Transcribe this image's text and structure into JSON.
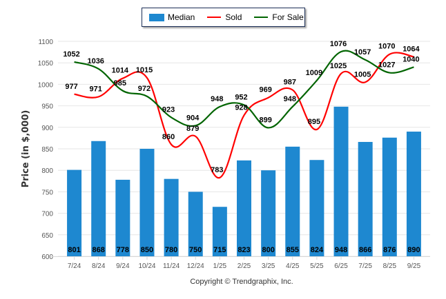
{
  "chart_data": {
    "type": "bar",
    "title": "",
    "xlabel": "",
    "ylabel": "Price (in $,000)",
    "ylim": [
      600,
      1100
    ],
    "yticks": [
      600,
      650,
      700,
      750,
      800,
      850,
      900,
      950,
      1000,
      1050,
      1100
    ],
    "grid": true,
    "legend_position": "top-center",
    "categories": [
      "7/24",
      "8/24",
      "9/24",
      "10/24",
      "11/24",
      "12/24",
      "1/25",
      "2/25",
      "3/25",
      "4/25",
      "5/25",
      "6/25",
      "7/25",
      "8/25",
      "9/25"
    ],
    "series": [
      {
        "name": "Median",
        "type": "bar",
        "color": "#1e88d0",
        "values": [
          801,
          868,
          778,
          850,
          780,
          750,
          715,
          823,
          800,
          855,
          824,
          948,
          866,
          876,
          890
        ]
      },
      {
        "name": "Sold",
        "type": "line",
        "color": "#ff0000",
        "values": [
          977,
          971,
          1014,
          1015,
          860,
          879,
          783,
          928,
          969,
          987,
          895,
          1025,
          1005,
          1070,
          1064
        ]
      },
      {
        "name": "For Sale",
        "type": "line",
        "color": "#006400",
        "values": [
          1052,
          1036,
          985,
          972,
          923,
          904,
          948,
          952,
          899,
          948,
          1009,
          1076,
          1057,
          1027,
          1040
        ]
      }
    ]
  },
  "legend": {
    "median": "Median",
    "sold": "Sold",
    "for_sale": "For Sale"
  },
  "footer": {
    "copyright": "Copyright © Trendgraphix, Inc."
  }
}
